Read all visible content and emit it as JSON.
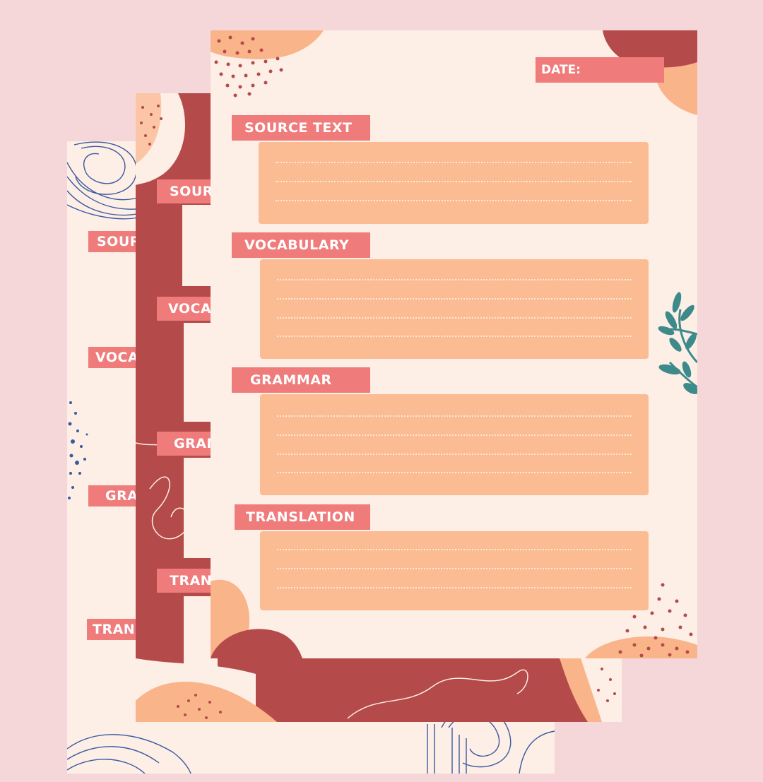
{
  "colors": {
    "background": "#f6d7d9",
    "paper": "#fdeee6",
    "label": "#ef7b7b",
    "box": "#fbbc93",
    "brick": "#b44a4a",
    "peach": "#f9b48a",
    "teal": "#3c8a8a",
    "navy": "#3a5aa0"
  },
  "front_sheet": {
    "date_label": "DATE:",
    "sections": [
      {
        "label": "SOURCE TEXT",
        "lines": 3
      },
      {
        "label": "VOCABULARY",
        "lines": 4
      },
      {
        "label": "GRAMMAR",
        "lines": 4
      },
      {
        "label": "TRANSLATION",
        "lines": 3
      }
    ]
  },
  "middle_sheet": {
    "labels": [
      "SOUR",
      "VOCA",
      "GRAM",
      "TRAN"
    ]
  },
  "back_sheet": {
    "labels": [
      "SOUR",
      "VOCA",
      "GRA",
      "TRAN"
    ]
  },
  "decorations": [
    "leaf-icon",
    "dot-cluster-icon",
    "blob-icon",
    "squiggle-icon",
    "topographic-lines-icon"
  ]
}
